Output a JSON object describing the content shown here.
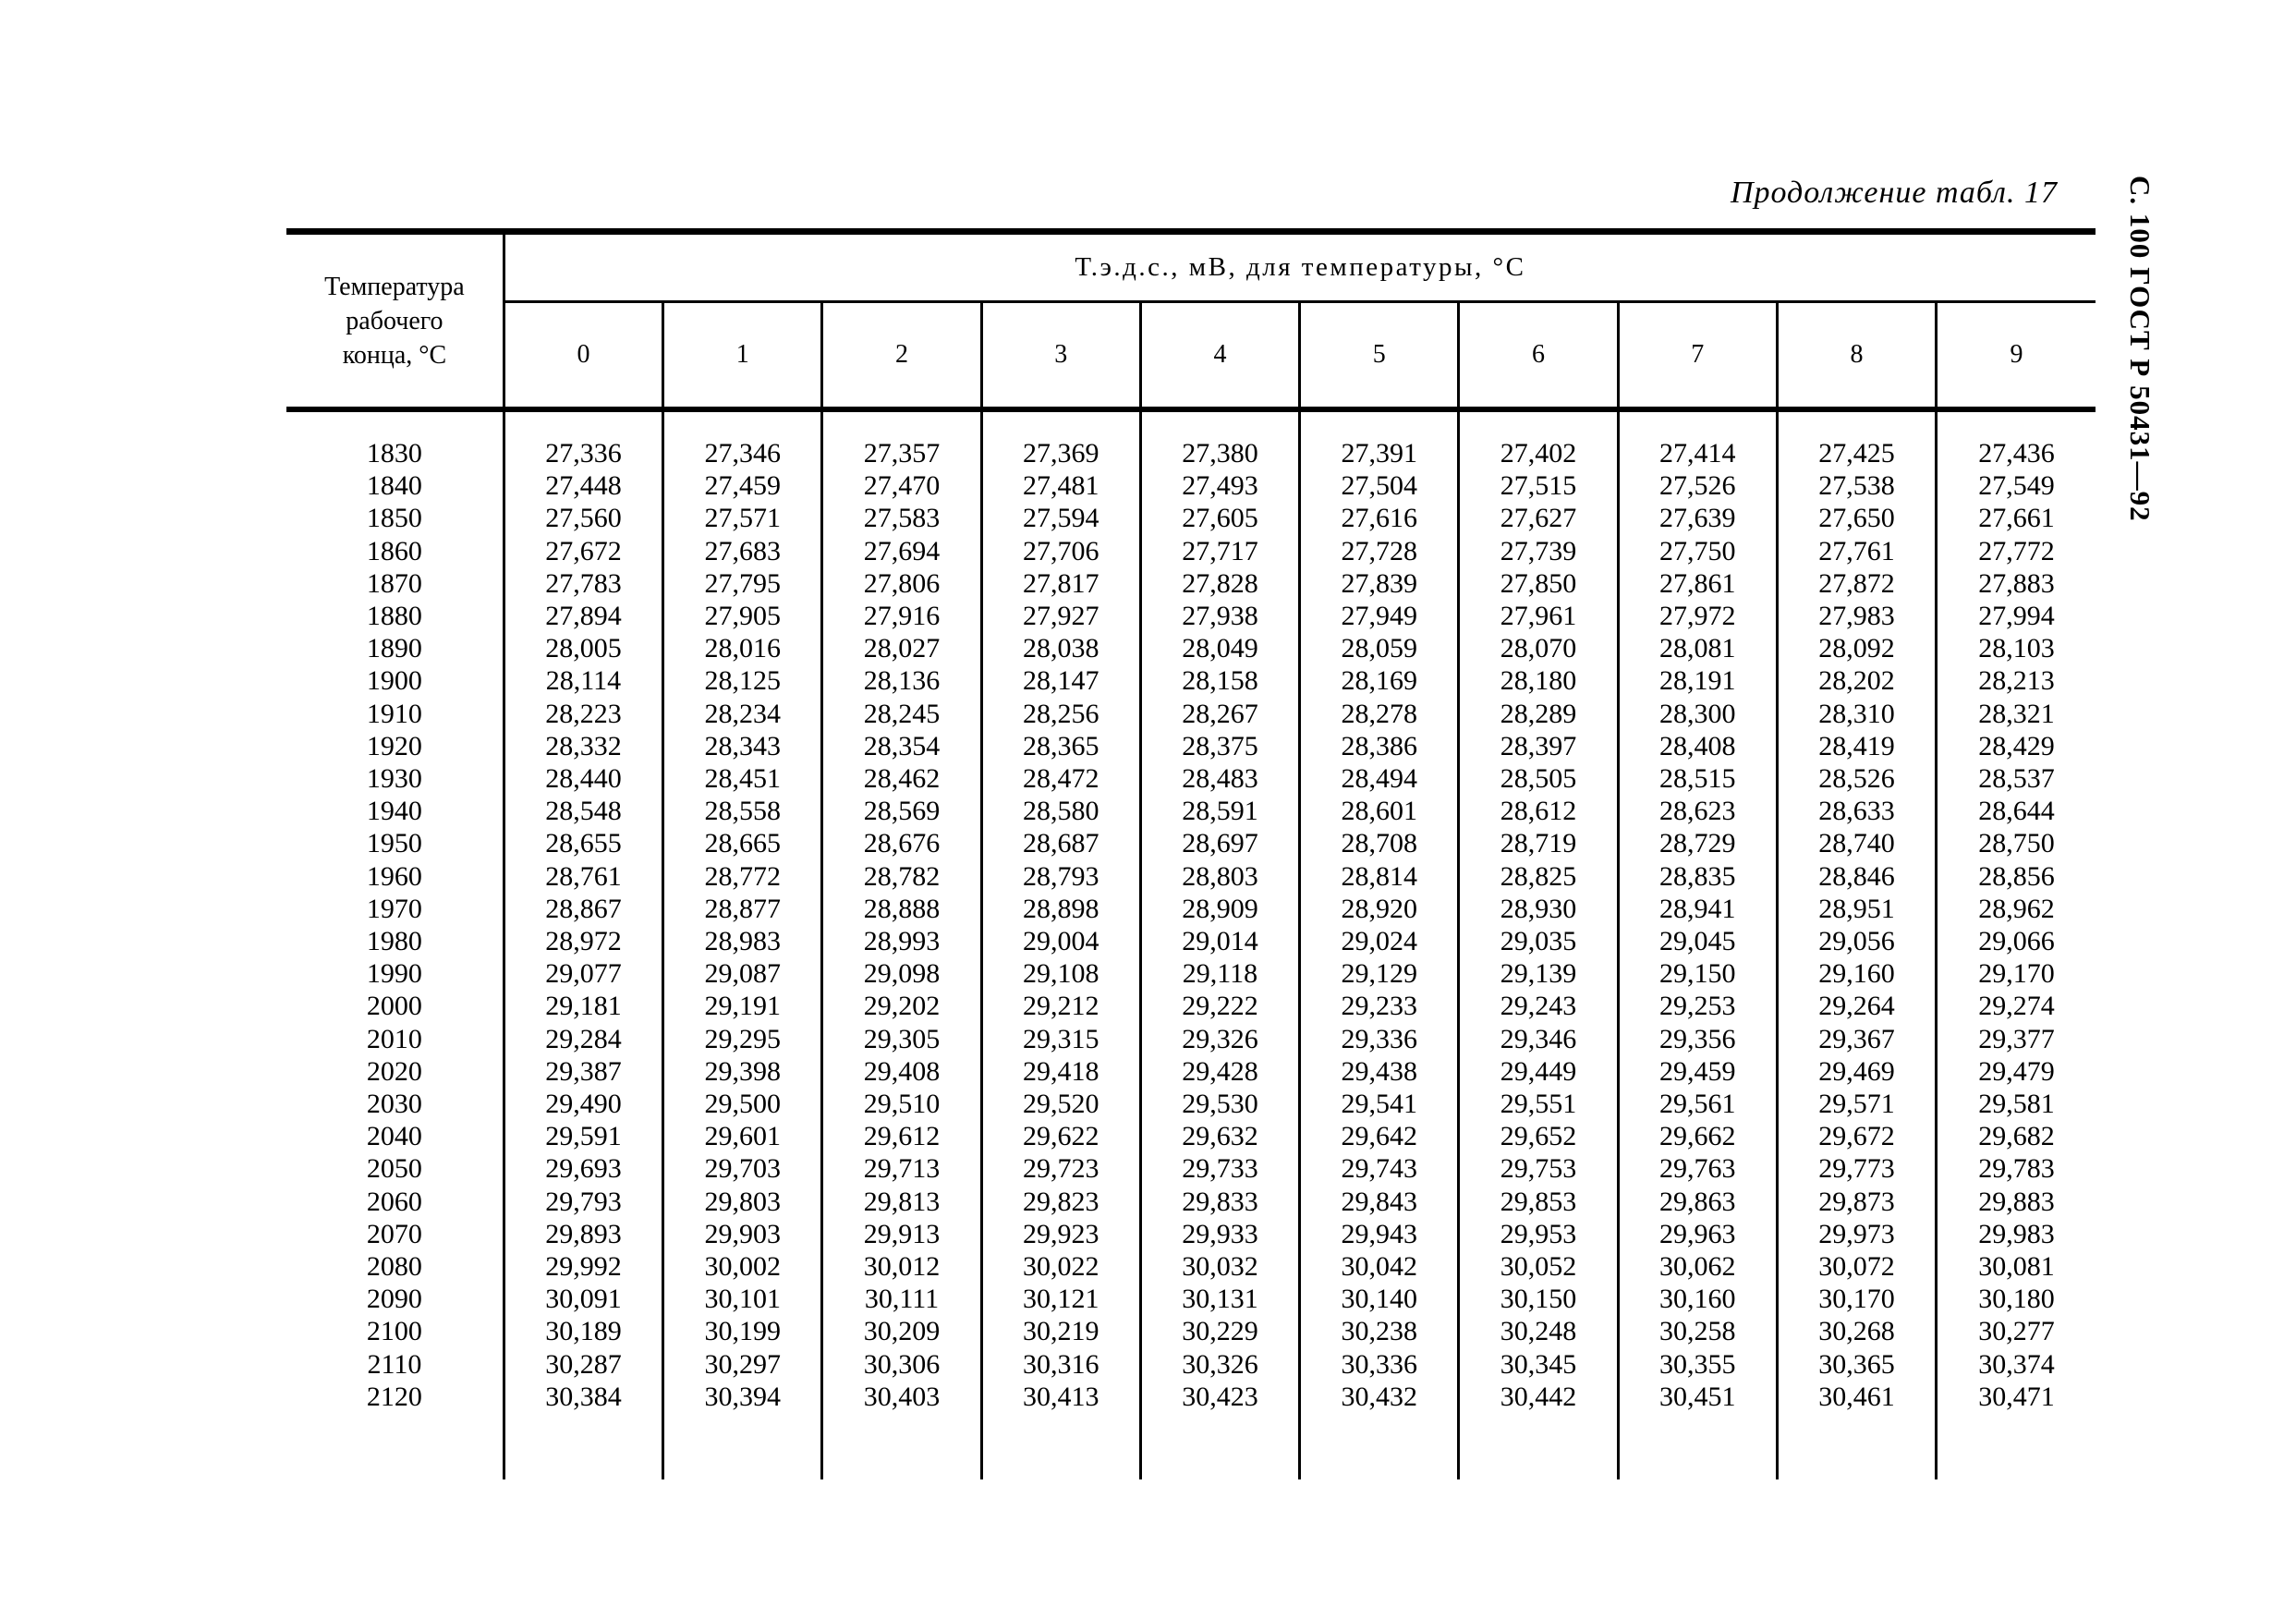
{
  "page": {
    "caption": "Продолжение табл. 17",
    "margin_note": "С. 100 ГОСТ Р 50431—92"
  },
  "table": {
    "temp_header": "Температура\nрабочего\nконца, °С",
    "group_header": "Т.э.д.с., мВ, для температуры, °С",
    "col_headers": [
      "0",
      "1",
      "2",
      "3",
      "4",
      "5",
      "6",
      "7",
      "8",
      "9"
    ],
    "rows": [
      {
        "t": "1830",
        "v": [
          "27,336",
          "27,346",
          "27,357",
          "27,369",
          "27,380",
          "27,391",
          "27,402",
          "27,414",
          "27,425",
          "27,436"
        ]
      },
      {
        "t": "1840",
        "v": [
          "27,448",
          "27,459",
          "27,470",
          "27,481",
          "27,493",
          "27,504",
          "27,515",
          "27,526",
          "27,538",
          "27,549"
        ]
      },
      {
        "t": "1850",
        "v": [
          "27,560",
          "27,571",
          "27,583",
          "27,594",
          "27,605",
          "27,616",
          "27,627",
          "27,639",
          "27,650",
          "27,661"
        ]
      },
      {
        "t": "1860",
        "v": [
          "27,672",
          "27,683",
          "27,694",
          "27,706",
          "27,717",
          "27,728",
          "27,739",
          "27,750",
          "27,761",
          "27,772"
        ]
      },
      {
        "t": "1870",
        "v": [
          "27,783",
          "27,795",
          "27,806",
          "27,817",
          "27,828",
          "27,839",
          "27,850",
          "27,861",
          "27,872",
          "27,883"
        ]
      },
      {
        "t": "1880",
        "v": [
          "27,894",
          "27,905",
          "27,916",
          "27,927",
          "27,938",
          "27,949",
          "27,961",
          "27,972",
          "27,983",
          "27,994"
        ]
      },
      {
        "t": "1890",
        "v": [
          "28,005",
          "28,016",
          "28,027",
          "28,038",
          "28,049",
          "28,059",
          "28,070",
          "28,081",
          "28,092",
          "28,103"
        ]
      },
      {
        "t": "1900",
        "v": [
          "28,114",
          "28,125",
          "28,136",
          "28,147",
          "28,158",
          "28,169",
          "28,180",
          "28,191",
          "28,202",
          "28,213"
        ]
      },
      {
        "t": "1910",
        "v": [
          "28,223",
          "28,234",
          "28,245",
          "28,256",
          "28,267",
          "28,278",
          "28,289",
          "28,300",
          "28,310",
          "28,321"
        ]
      },
      {
        "t": "1920",
        "v": [
          "28,332",
          "28,343",
          "28,354",
          "28,365",
          "28,375",
          "28,386",
          "28,397",
          "28,408",
          "28,419",
          "28,429"
        ]
      },
      {
        "t": "1930",
        "v": [
          "28,440",
          "28,451",
          "28,462",
          "28,472",
          "28,483",
          "28,494",
          "28,505",
          "28,515",
          "28,526",
          "28,537"
        ]
      },
      {
        "t": "1940",
        "v": [
          "28,548",
          "28,558",
          "28,569",
          "28,580",
          "28,591",
          "28,601",
          "28,612",
          "28,623",
          "28,633",
          "28,644"
        ]
      },
      {
        "t": "1950",
        "v": [
          "28,655",
          "28,665",
          "28,676",
          "28,687",
          "28,697",
          "28,708",
          "28,719",
          "28,729",
          "28,740",
          "28,750"
        ]
      },
      {
        "t": "1960",
        "v": [
          "28,761",
          "28,772",
          "28,782",
          "28,793",
          "28,803",
          "28,814",
          "28,825",
          "28,835",
          "28,846",
          "28,856"
        ]
      },
      {
        "t": "1970",
        "v": [
          "28,867",
          "28,877",
          "28,888",
          "28,898",
          "28,909",
          "28,920",
          "28,930",
          "28,941",
          "28,951",
          "28,962"
        ]
      },
      {
        "t": "1980",
        "v": [
          "28,972",
          "28,983",
          "28,993",
          "29,004",
          "29,014",
          "29,024",
          "29,035",
          "29,045",
          "29,056",
          "29,066"
        ]
      },
      {
        "t": "1990",
        "v": [
          "29,077",
          "29,087",
          "29,098",
          "29,108",
          "29,118",
          "29,129",
          "29,139",
          "29,150",
          "29,160",
          "29,170"
        ]
      },
      {
        "t": "2000",
        "v": [
          "29,181",
          "29,191",
          "29,202",
          "29,212",
          "29,222",
          "29,233",
          "29,243",
          "29,253",
          "29,264",
          "29,274"
        ]
      },
      {
        "t": "2010",
        "v": [
          "29,284",
          "29,295",
          "29,305",
          "29,315",
          "29,326",
          "29,336",
          "29,346",
          "29,356",
          "29,367",
          "29,377"
        ]
      },
      {
        "t": "2020",
        "v": [
          "29,387",
          "29,398",
          "29,408",
          "29,418",
          "29,428",
          "29,438",
          "29,449",
          "29,459",
          "29,469",
          "29,479"
        ]
      },
      {
        "t": "2030",
        "v": [
          "29,490",
          "29,500",
          "29,510",
          "29,520",
          "29,530",
          "29,541",
          "29,551",
          "29,561",
          "29,571",
          "29,581"
        ]
      },
      {
        "t": "2040",
        "v": [
          "29,591",
          "29,601",
          "29,612",
          "29,622",
          "29,632",
          "29,642",
          "29,652",
          "29,662",
          "29,672",
          "29,682"
        ]
      },
      {
        "t": "2050",
        "v": [
          "29,693",
          "29,703",
          "29,713",
          "29,723",
          "29,733",
          "29,743",
          "29,753",
          "29,763",
          "29,773",
          "29,783"
        ]
      },
      {
        "t": "2060",
        "v": [
          "29,793",
          "29,803",
          "29,813",
          "29,823",
          "29,833",
          "29,843",
          "29,853",
          "29,863",
          "29,873",
          "29,883"
        ]
      },
      {
        "t": "2070",
        "v": [
          "29,893",
          "29,903",
          "29,913",
          "29,923",
          "29,933",
          "29,943",
          "29,953",
          "29,963",
          "29,973",
          "29,983"
        ]
      },
      {
        "t": "2080",
        "v": [
          "29,992",
          "30,002",
          "30,012",
          "30,022",
          "30,032",
          "30,042",
          "30,052",
          "30,062",
          "30,072",
          "30,081"
        ]
      },
      {
        "t": "2090",
        "v": [
          "30,091",
          "30,101",
          "30,111",
          "30,121",
          "30,131",
          "30,140",
          "30,150",
          "30,160",
          "30,170",
          "30,180"
        ]
      },
      {
        "t": "2100",
        "v": [
          "30,189",
          "30,199",
          "30,209",
          "30,219",
          "30,229",
          "30,238",
          "30,248",
          "30,258",
          "30,268",
          "30,277"
        ]
      },
      {
        "t": "2110",
        "v": [
          "30,287",
          "30,297",
          "30,306",
          "30,316",
          "30,326",
          "30,336",
          "30,345",
          "30,355",
          "30,365",
          "30,374"
        ]
      },
      {
        "t": "2120",
        "v": [
          "30,384",
          "30,394",
          "30,403",
          "30,413",
          "30,423",
          "30,432",
          "30,442",
          "30,451",
          "30,461",
          "30,471"
        ]
      }
    ]
  }
}
